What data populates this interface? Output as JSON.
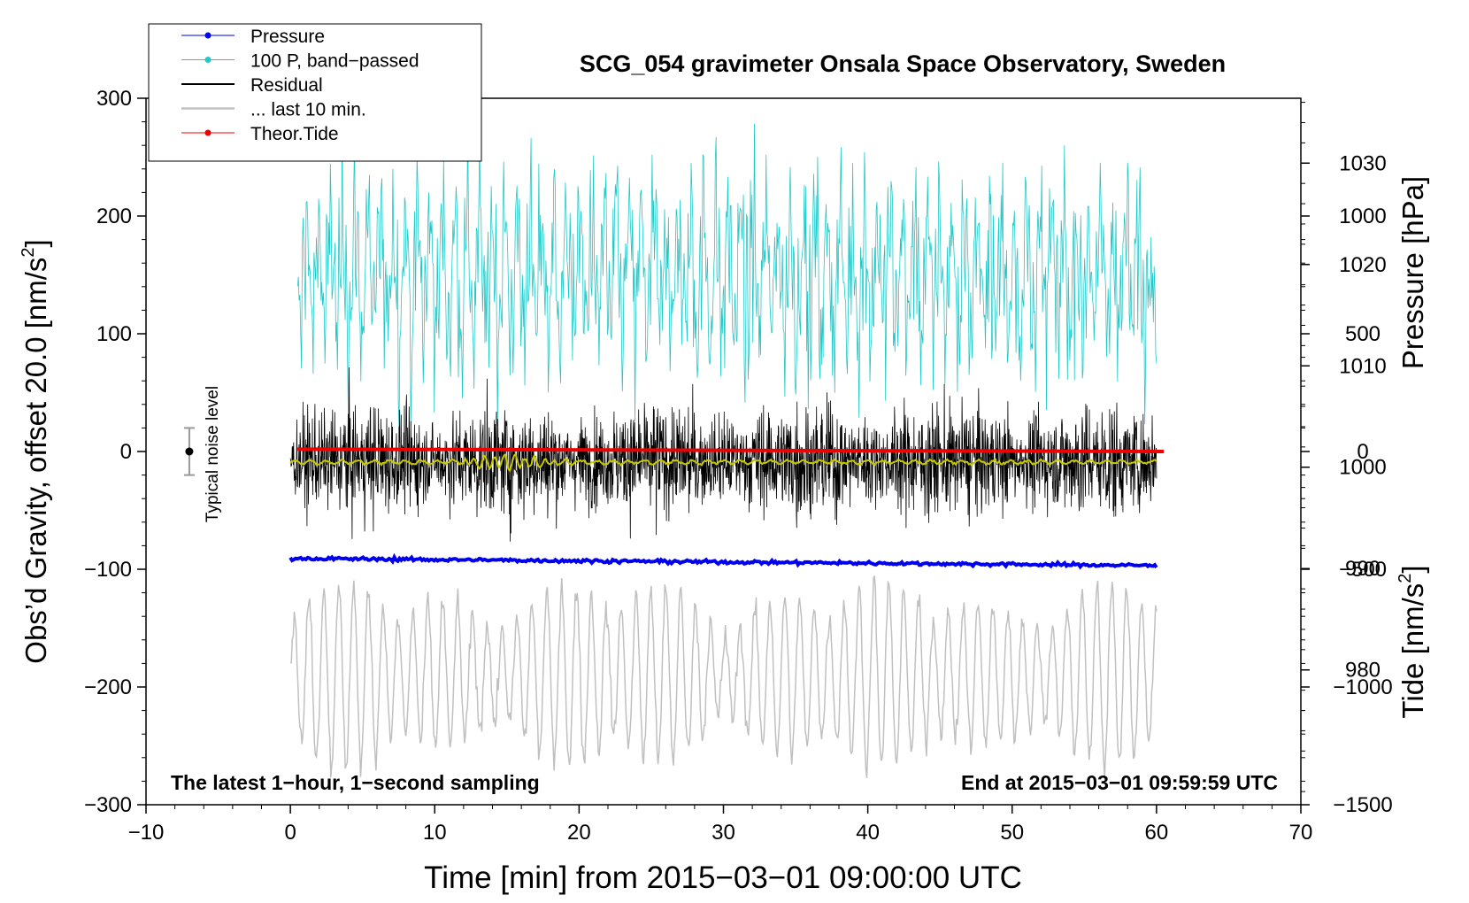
{
  "chart_data": {
    "type": "line",
    "title": "SCG_054 gravimeter Onsala Space Observatory, Sweden",
    "xlabel": "Time [min] from 2015−03−01 09:00:00 UTC",
    "ylabel": "Obs’d Gravity, offset 20.0 [nm/s²]",
    "ylabel_text": "Obs’d Gravity, offset 20.0 [nm/s",
    "ylabel_sup": "2",
    "ylabel_tail": "]",
    "xlim": [
      -10,
      70
    ],
    "ylim": [
      -300,
      300
    ],
    "x_ticks": [
      -10,
      0,
      10,
      20,
      30,
      40,
      50,
      60,
      70
    ],
    "x_tick_labels": [
      "−10",
      "0",
      "10",
      "20",
      "30",
      "40",
      "50",
      "60",
      "70"
    ],
    "y_ticks": [
      -300,
      -200,
      -100,
      0,
      100,
      200,
      300
    ],
    "y_tick_labels": [
      "−300",
      "−200",
      "−100",
      "0",
      "100",
      "200",
      "300"
    ],
    "pressure_axis": {
      "label": "Pressure [hPa]",
      "ticks": [
        980,
        990,
        1000,
        1010,
        1020,
        1030
      ],
      "tick_labels": [
        "980",
        "990",
        "1000",
        "1010",
        "1020",
        "1030"
      ],
      "range": [
        966.7,
        1036.4
      ]
    },
    "tide_axis": {
      "label_text": "Tide [nm/s",
      "label_sup": "2",
      "label_tail": "]",
      "ticks": [
        -1500,
        -1000,
        -500,
        0,
        500,
        1000
      ],
      "tick_labels": [
        "−1500",
        "−1000",
        "−500",
        "0",
        "500",
        "1000"
      ],
      "range": [
        -1500,
        1500
      ]
    },
    "legend": {
      "placement": "top-left",
      "entries": [
        {
          "label": "Pressure",
          "color": "#0000ee",
          "marker": true
        },
        {
          "label": "100 P, band−passed",
          "color": "#20c8c8",
          "marker": true
        },
        {
          "label": "Residual",
          "color": "#000000",
          "marker": false
        },
        {
          "label": "... last 10 min.",
          "color": "#c0c0c0",
          "marker": false
        },
        {
          "label": "Theor.Tide",
          "color": "#ee0000",
          "marker": true
        }
      ]
    },
    "annotations": {
      "noise": "Typical noise level",
      "noise_level": {
        "x": -7,
        "center": 0,
        "half_range": 20
      },
      "bottom_left": "The latest 1−hour, 1−second sampling",
      "bottom_right": "End at 2015−03−01 09:59:59 UTC"
    },
    "series": [
      {
        "name": "Pressure",
        "axis": "pressure",
        "color": "#0000ee",
        "approx_values": {
          "start": 991.0,
          "end": 990.3
        },
        "x_range": [
          0,
          60
        ]
      },
      {
        "name": "100 P, band−passed",
        "axis": "gravity",
        "color": "#20c8c8",
        "center": 150,
        "typical_range": [
          40,
          260
        ],
        "x_range": [
          0.5,
          60
        ]
      },
      {
        "name": "Residual",
        "axis": "gravity",
        "color": "#000000",
        "center": -8,
        "typical_range": [
          -100,
          80
        ],
        "x_range": [
          0,
          60
        ]
      },
      {
        "name": "Smoothed residual",
        "axis": "gravity",
        "color": "#c8c800",
        "center": -9,
        "x_range": [
          0,
          60
        ]
      },
      {
        "name": "... last 10 min.",
        "axis": "gravity",
        "color": "#c0c0c0",
        "center": -190,
        "typical_range": [
          -265,
          -100
        ],
        "x_range": [
          0,
          60
        ]
      },
      {
        "name": "Theor.Tide",
        "axis": "tide",
        "color": "#ee0000",
        "approx_values": {
          "start": 10,
          "end": 0
        },
        "x_range": [
          0.5,
          60.5
        ]
      }
    ]
  }
}
